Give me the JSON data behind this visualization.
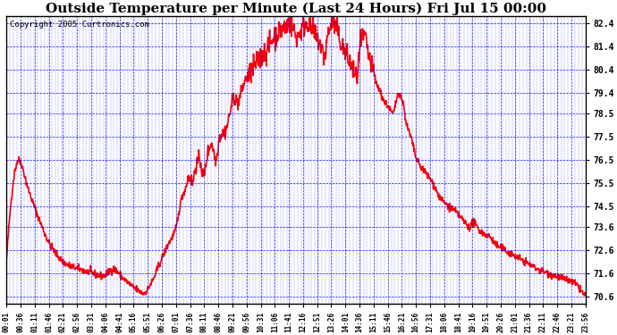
{
  "title": "Outside Temperature per Minute (Last 24 Hours) Fri Jul 15 00:00",
  "copyright": "Copyright 2005 Curtronics.com",
  "background_color": "#ffffff",
  "plot_bg_color": "#ffffff",
  "line_color": "red",
  "line_width": 1.2,
  "grid_color": "blue",
  "y_ticks": [
    70.6,
    71.6,
    72.6,
    73.6,
    74.5,
    75.5,
    76.5,
    77.5,
    78.5,
    79.4,
    80.4,
    81.4,
    82.4
  ],
  "ylim": [
    70.3,
    82.7
  ],
  "x_tick_labels": [
    "00:01",
    "00:36",
    "01:11",
    "01:46",
    "02:21",
    "02:56",
    "03:31",
    "04:06",
    "04:41",
    "05:16",
    "05:51",
    "06:26",
    "07:01",
    "07:36",
    "08:11",
    "08:46",
    "09:21",
    "09:56",
    "10:31",
    "11:06",
    "11:41",
    "12:16",
    "12:51",
    "13:26",
    "14:01",
    "14:36",
    "15:11",
    "15:46",
    "16:21",
    "16:56",
    "17:31",
    "18:06",
    "18:41",
    "19:16",
    "19:51",
    "20:26",
    "21:01",
    "21:36",
    "22:11",
    "22:46",
    "23:21",
    "23:56"
  ],
  "title_fontsize": 11,
  "copyright_fontsize": 6.5,
  "tick_label_fontsize": 5.5,
  "y_tick_fontsize": 7,
  "n_minutes": 1440,
  "curve_keypoints": [
    [
      0,
      72.2
    ],
    [
      30,
      76.5
    ],
    [
      55,
      75.2
    ],
    [
      80,
      74.0
    ],
    [
      110,
      72.8
    ],
    [
      150,
      72.0
    ],
    [
      200,
      71.7
    ],
    [
      240,
      71.5
    ],
    [
      265,
      71.8
    ],
    [
      290,
      71.4
    ],
    [
      320,
      70.95
    ],
    [
      330,
      70.85
    ],
    [
      340,
      70.75
    ],
    [
      360,
      71.2
    ],
    [
      380,
      72.0
    ],
    [
      400,
      72.8
    ],
    [
      420,
      73.5
    ],
    [
      435,
      74.8
    ],
    [
      445,
      75.3
    ],
    [
      455,
      75.8
    ],
    [
      462,
      75.5
    ],
    [
      470,
      76.2
    ],
    [
      480,
      76.5
    ],
    [
      490,
      75.8
    ],
    [
      500,
      76.8
    ],
    [
      510,
      77.2
    ],
    [
      520,
      76.5
    ],
    [
      530,
      77.5
    ],
    [
      545,
      77.8
    ],
    [
      555,
      78.5
    ],
    [
      565,
      79.2
    ],
    [
      575,
      79.0
    ],
    [
      585,
      79.5
    ],
    [
      595,
      80.0
    ],
    [
      605,
      80.2
    ],
    [
      615,
      80.5
    ],
    [
      625,
      80.8
    ],
    [
      635,
      81.0
    ],
    [
      645,
      81.2
    ],
    [
      655,
      81.5
    ],
    [
      665,
      81.8
    ],
    [
      675,
      82.0
    ],
    [
      690,
      82.2
    ],
    [
      705,
      82.4
    ],
    [
      715,
      82.1
    ],
    [
      720,
      81.8
    ],
    [
      730,
      82.0
    ],
    [
      740,
      82.3
    ],
    [
      750,
      82.4
    ],
    [
      760,
      82.1
    ],
    [
      770,
      81.8
    ],
    [
      780,
      81.5
    ],
    [
      790,
      81.0
    ],
    [
      800,
      82.0
    ],
    [
      810,
      82.4
    ],
    [
      820,
      82.2
    ],
    [
      830,
      81.6
    ],
    [
      840,
      81.2
    ],
    [
      850,
      80.8
    ],
    [
      860,
      80.5
    ],
    [
      870,
      80.0
    ],
    [
      880,
      81.5
    ],
    [
      890,
      81.8
    ],
    [
      900,
      81.0
    ],
    [
      910,
      80.4
    ],
    [
      920,
      79.8
    ],
    [
      930,
      79.4
    ],
    [
      940,
      79.0
    ],
    [
      950,
      78.8
    ],
    [
      960,
      78.5
    ],
    [
      975,
      79.4
    ],
    [
      985,
      79.0
    ],
    [
      995,
      78.0
    ],
    [
      1005,
      77.5
    ],
    [
      1020,
      76.5
    ],
    [
      1040,
      76.0
    ],
    [
      1060,
      75.5
    ],
    [
      1080,
      74.8
    ],
    [
      1100,
      74.5
    ],
    [
      1120,
      74.2
    ],
    [
      1140,
      73.8
    ],
    [
      1150,
      73.6
    ],
    [
      1160,
      73.8
    ],
    [
      1170,
      73.6
    ],
    [
      1180,
      73.4
    ],
    [
      1200,
      73.2
    ],
    [
      1220,
      72.8
    ],
    [
      1240,
      72.6
    ],
    [
      1260,
      72.4
    ],
    [
      1280,
      72.2
    ],
    [
      1300,
      72.0
    ],
    [
      1320,
      71.8
    ],
    [
      1350,
      71.6
    ],
    [
      1380,
      71.4
    ],
    [
      1410,
      71.2
    ],
    [
      1439,
      70.6
    ]
  ]
}
